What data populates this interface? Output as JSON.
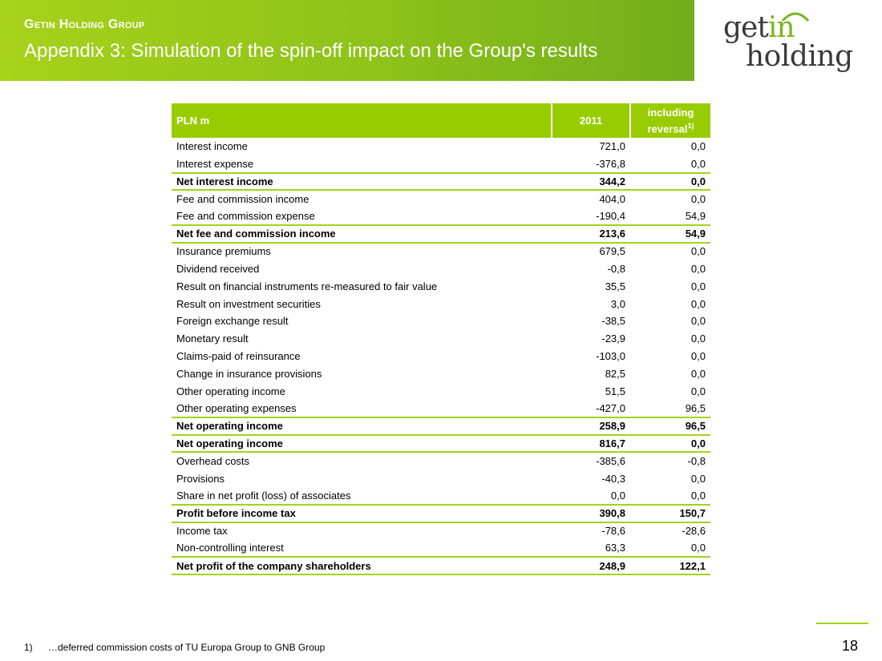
{
  "header": {
    "group_name": "Getin Holding Group",
    "title": "Appendix 3: Simulation of the spin-off impact on the Group's results"
  },
  "logo": {
    "line1_a": "get",
    "line1_b": "in",
    "line2": "holding"
  },
  "table": {
    "columns": {
      "label": "PLN m",
      "year": "2011",
      "reversal_line1": "including",
      "reversal_line2": "reversal",
      "reversal_note": "1)"
    },
    "rows": [
      {
        "label": "Interest income",
        "v2011": "721,0",
        "rev": "0,0",
        "bold": false,
        "line": false
      },
      {
        "label": "Interest expense",
        "v2011": "-376,8",
        "rev": "0,0",
        "bold": false,
        "line": false
      },
      {
        "label": "Net interest income",
        "v2011": "344,2",
        "rev": "0,0",
        "bold": true,
        "line": true
      },
      {
        "label": "Fee and commission income",
        "v2011": "404,0",
        "rev": "0,0",
        "bold": false,
        "line": true
      },
      {
        "label": "Fee and commission expense",
        "v2011": "-190,4",
        "rev": "54,9",
        "bold": false,
        "line": false
      },
      {
        "label": "Net fee and commission income",
        "v2011": "213,6",
        "rev": "54,9",
        "bold": true,
        "line": true
      },
      {
        "label": "Insurance premiums",
        "v2011": "679,5",
        "rev": "0,0",
        "bold": false,
        "line": true
      },
      {
        "label": "Dividend received",
        "v2011": "-0,8",
        "rev": "0,0",
        "bold": false,
        "line": false
      },
      {
        "label": "Result on financial instruments re-measured to fair value",
        "v2011": "35,5",
        "rev": "0,0",
        "bold": false,
        "line": false
      },
      {
        "label": "Result on investment securities",
        "v2011": "3,0",
        "rev": "0,0",
        "bold": false,
        "line": false
      },
      {
        "label": "Foreign exchange result",
        "v2011": "-38,5",
        "rev": "0,0",
        "bold": false,
        "line": false
      },
      {
        "label": "Monetary result",
        "v2011": "-23,9",
        "rev": "0,0",
        "bold": false,
        "line": false
      },
      {
        "label": "Claims-paid of reinsurance",
        "v2011": "-103,0",
        "rev": "0,0",
        "bold": false,
        "line": false
      },
      {
        "label": "Change in insurance provisions",
        "v2011": "82,5",
        "rev": "0,0",
        "bold": false,
        "line": false
      },
      {
        "label": "Other operating income",
        "v2011": "51,5",
        "rev": "0,0",
        "bold": false,
        "line": false
      },
      {
        "label": "Other operating expenses",
        "v2011": "-427,0",
        "rev": "96,5",
        "bold": false,
        "line": false
      },
      {
        "label": "Net operating income",
        "v2011": "258,9",
        "rev": "96,5",
        "bold": true,
        "line": true
      },
      {
        "label": "Net operating income",
        "v2011": "816,7",
        "rev": "0,0",
        "bold": true,
        "line": true
      },
      {
        "label": "Overhead costs",
        "v2011": "-385,6",
        "rev": "-0,8",
        "bold": false,
        "line": true
      },
      {
        "label": "Provisions",
        "v2011": "-40,3",
        "rev": "0,0",
        "bold": false,
        "line": false
      },
      {
        "label": "Share in net profit (loss) of associates",
        "v2011": "0,0",
        "rev": "0,0",
        "bold": false,
        "line": false
      },
      {
        "label": "Profit before income tax",
        "v2011": "390,8",
        "rev": "150,7",
        "bold": true,
        "line": true
      },
      {
        "label": "Income tax",
        "v2011": "-78,6",
        "rev": "-28,6",
        "bold": false,
        "line": true
      },
      {
        "label": "Non-controlling interest",
        "v2011": "63,3",
        "rev": "0,0",
        "bold": false,
        "line": false
      },
      {
        "label": "Net profit of the company shareholders",
        "v2011": "248,9",
        "rev": "122,1",
        "bold": true,
        "line": true
      }
    ]
  },
  "footnote": {
    "marker": "1)",
    "text": "…deferred commission costs of TU Europa Group to GNB Group"
  },
  "page_number": "18",
  "colors": {
    "accent": "#99cc00",
    "band_start": "#a6d21a",
    "band_end": "#72ad1c",
    "logo_green": "#7ab51d"
  }
}
